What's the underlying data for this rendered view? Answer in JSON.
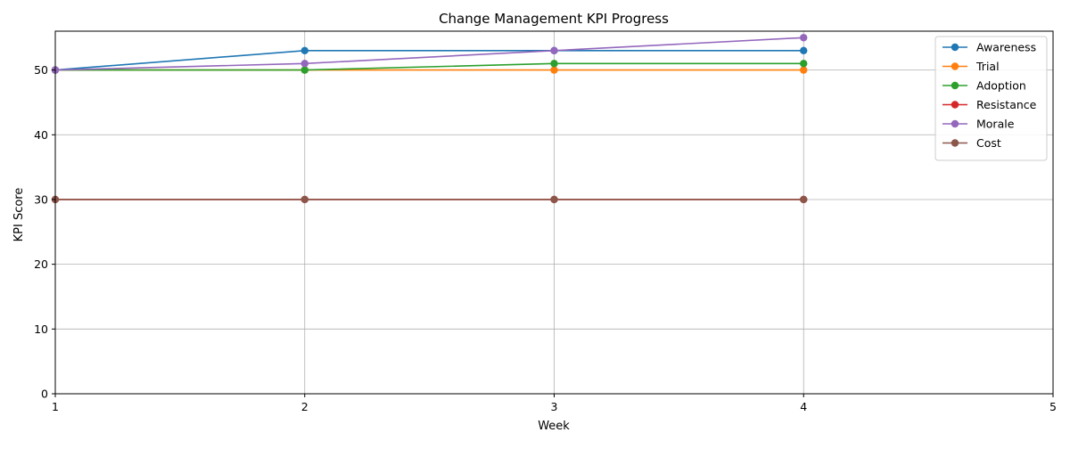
{
  "chart_data": {
    "type": "line",
    "title": "Change Management KPI Progress",
    "xlabel": "Week",
    "ylabel": "KPI Score",
    "xlim": [
      1,
      5
    ],
    "ylim": [
      0,
      56
    ],
    "x_ticks": [
      1,
      2,
      3,
      4,
      5
    ],
    "y_ticks": [
      0,
      10,
      20,
      30,
      40,
      50
    ],
    "grid": true,
    "legend_position": "top-right",
    "x": [
      1,
      2,
      3,
      4
    ],
    "series": [
      {
        "name": "Awareness",
        "color": "#1f77b4",
        "values": [
          50,
          53,
          53,
          53
        ]
      },
      {
        "name": "Trial",
        "color": "#ff7f0e",
        "values": [
          50,
          50,
          50,
          50
        ]
      },
      {
        "name": "Adoption",
        "color": "#2ca02c",
        "values": [
          50,
          50,
          51,
          51
        ]
      },
      {
        "name": "Resistance",
        "color": "#d62728",
        "values": [
          30,
          30,
          30,
          30
        ]
      },
      {
        "name": "Morale",
        "color": "#9467bd",
        "values": [
          50,
          51,
          53,
          55
        ]
      },
      {
        "name": "Cost",
        "color": "#8c564b",
        "values": [
          30,
          30,
          30,
          30
        ]
      }
    ]
  }
}
